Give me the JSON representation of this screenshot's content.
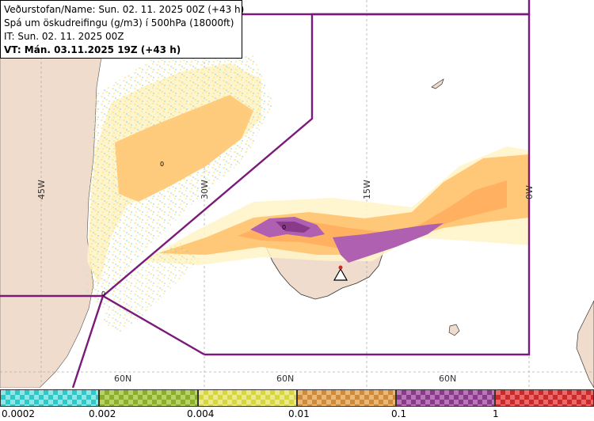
{
  "info": {
    "line1": "Veðurstofan/Name: Sun. 02. 11. 2025 00Z (+43 h)",
    "line2": "Spá um öskudreifingu (g/m3) í 500hPa (18000ft)",
    "line3": "IT: Sun. 02. 11. 2025 00Z",
    "line4": "VT: Mán. 03.11.2025 19Z (+43 h)"
  },
  "graticule": {
    "lon_labels": [
      "45W",
      "30W",
      "15W",
      "0W"
    ],
    "lat_labels": [
      "60N",
      "60N",
      "60N"
    ]
  },
  "map_labels": {
    "contour_zero_1": "0",
    "contour_zero_2": "0",
    "contour_zero_3": "0"
  },
  "legend": {
    "ticks": [
      "0.0002",
      "0.002",
      "0.004",
      "0.01",
      "0.1",
      "1"
    ],
    "colors": [
      "#2ec8c8",
      "#8caf2a",
      "#d8d640",
      "#d08a3a",
      "#8a3a8a",
      "#cc2a2a"
    ],
    "colors_light": [
      "#8ee6e6",
      "#b8d26a",
      "#ecea88",
      "#e8b878",
      "#b878b8",
      "#e86a6a"
    ]
  },
  "colors": {
    "land": "#f0dccc",
    "sea": "#ffffff",
    "region_border": "#7a1a7a",
    "ash_light": "#ffc878",
    "ash_medium": "#ffb060",
    "ash_dark": "#b060b0",
    "ash_darker": "#8a3a8a",
    "grid": "#b0b0b0"
  }
}
